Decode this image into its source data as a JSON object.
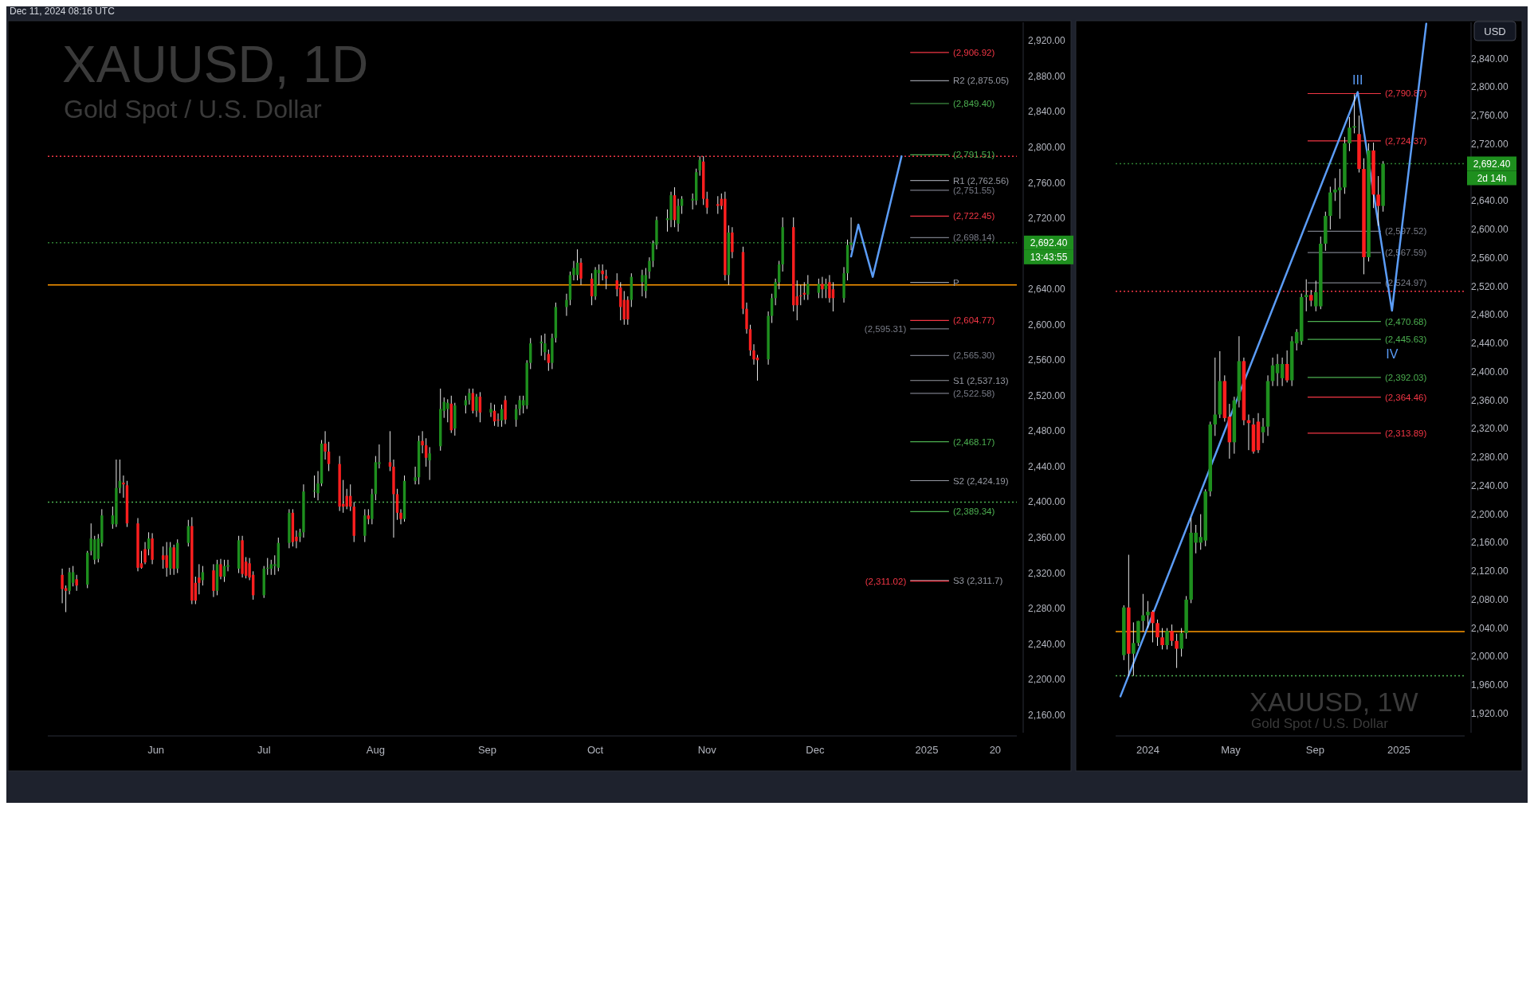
{
  "chart_data": [
    {
      "type": "candlestick",
      "title": "XAUUSD, 1D",
      "subtitle": "Gold Spot / U.S. Dollar",
      "grid": false,
      "x": [
        "2024-05-06",
        "2024-05-07",
        "2024-05-08",
        "2024-05-09",
        "2024-05-10",
        "2024-05-13",
        "2024-05-14",
        "2024-05-15",
        "2024-05-16",
        "2024-05-17",
        "2024-05-20",
        "2024-05-21",
        "2024-05-22",
        "2024-05-23",
        "2024-05-24",
        "2024-05-27",
        "2024-05-28",
        "2024-05-29",
        "2024-05-30",
        "2024-05-31",
        "2024-06-03",
        "2024-06-04",
        "2024-06-05",
        "2024-06-06",
        "2024-06-07",
        "2024-06-10",
        "2024-06-11",
        "2024-06-12",
        "2024-06-13",
        "2024-06-14",
        "2024-06-17",
        "2024-06-18",
        "2024-06-19",
        "2024-06-20",
        "2024-06-21",
        "2024-06-24",
        "2024-06-25",
        "2024-06-26",
        "2024-06-27",
        "2024-06-28",
        "2024-07-01",
        "2024-07-02",
        "2024-07-03",
        "2024-07-04",
        "2024-07-05",
        "2024-07-08",
        "2024-07-09",
        "2024-07-10",
        "2024-07-11",
        "2024-07-12",
        "2024-07-15",
        "2024-07-16",
        "2024-07-17",
        "2024-07-18",
        "2024-07-19",
        "2024-07-22",
        "2024-07-23",
        "2024-07-24",
        "2024-07-25",
        "2024-07-26",
        "2024-07-29",
        "2024-07-30",
        "2024-07-31",
        "2024-08-01",
        "2024-08-02",
        "2024-08-05",
        "2024-08-06",
        "2024-08-07",
        "2024-08-08",
        "2024-08-09",
        "2024-08-12",
        "2024-08-13",
        "2024-08-14",
        "2024-08-15",
        "2024-08-16",
        "2024-08-19",
        "2024-08-20",
        "2024-08-21",
        "2024-08-22",
        "2024-08-23",
        "2024-08-26",
        "2024-08-27",
        "2024-08-28",
        "2024-08-29",
        "2024-08-30",
        "2024-09-02",
        "2024-09-03",
        "2024-09-04",
        "2024-09-05",
        "2024-09-06",
        "2024-09-09",
        "2024-09-10",
        "2024-09-11",
        "2024-09-12",
        "2024-09-13",
        "2024-09-16",
        "2024-09-17",
        "2024-09-18",
        "2024-09-19",
        "2024-09-20",
        "2024-09-23",
        "2024-09-24",
        "2024-09-25",
        "2024-09-26",
        "2024-09-27",
        "2024-09-30",
        "2024-10-01",
        "2024-10-02",
        "2024-10-03",
        "2024-10-04",
        "2024-10-07",
        "2024-10-08",
        "2024-10-09",
        "2024-10-10",
        "2024-10-11",
        "2024-10-14",
        "2024-10-15",
        "2024-10-16",
        "2024-10-17",
        "2024-10-18",
        "2024-10-21",
        "2024-10-22",
        "2024-10-23",
        "2024-10-24",
        "2024-10-25",
        "2024-10-28",
        "2024-10-29",
        "2024-10-30",
        "2024-10-31",
        "2024-11-01",
        "2024-11-04",
        "2024-11-05",
        "2024-11-06",
        "2024-11-07",
        "2024-11-08",
        "2024-11-11",
        "2024-11-12",
        "2024-11-13",
        "2024-11-14",
        "2024-11-15",
        "2024-11-18",
        "2024-11-19",
        "2024-11-20",
        "2024-11-21",
        "2024-11-22",
        "2024-11-25",
        "2024-11-26",
        "2024-11-27",
        "2024-11-28",
        "2024-11-29",
        "2024-12-02",
        "2024-12-03",
        "2024-12-04",
        "2024-12-05",
        "2024-12-06",
        "2024-12-09",
        "2024-12-10",
        "2024-12-11"
      ],
      "ohlc": [
        [
          2318,
          2325,
          2286,
          2302
        ],
        [
          2303,
          2306,
          2276,
          2300
        ],
        [
          2300,
          2326,
          2296,
          2321
        ],
        [
          2309,
          2328,
          2305,
          2321
        ],
        [
          2313,
          2318,
          2300,
          2306
        ],
        [
          2307,
          2345,
          2303,
          2343
        ],
        [
          2345,
          2376,
          2340,
          2359
        ],
        [
          2335,
          2362,
          2330,
          2358
        ],
        [
          2336,
          2364,
          2332,
          2359
        ],
        [
          2354,
          2392,
          2350,
          2385
        ],
        [
          2375,
          2395,
          2370,
          2385
        ],
        [
          2375,
          2448,
          2372,
          2416
        ],
        [
          2416,
          2448,
          2410,
          2424
        ],
        [
          2422,
          2430,
          2405,
          2420
        ],
        [
          2419,
          2424,
          2372,
          2376
        ],
        [
          2376,
          2382,
          2322,
          2326
        ],
        [
          2331,
          2345,
          2325,
          2326
        ],
        [
          2347,
          2355,
          2330,
          2332
        ],
        [
          2347,
          2366,
          2340,
          2359
        ],
        [
          2359,
          2365,
          2330,
          2335
        ],
        [
          2340,
          2350,
          2325,
          2335
        ],
        [
          2340,
          2355,
          2316,
          2326
        ],
        [
          2325,
          2355,
          2318,
          2349
        ],
        [
          2349,
          2352,
          2318,
          2325
        ],
        [
          2325,
          2358,
          2320,
          2354
        ],
        [
          2354,
          2380,
          2350,
          2373
        ],
        [
          2373,
          2383,
          2285,
          2289
        ],
        [
          2309,
          2316,
          2285,
          2289
        ],
        [
          2315,
          2330,
          2296,
          2309
        ],
        [
          2312,
          2328,
          2306,
          2321
        ],
        [
          2323,
          2330,
          2293,
          2300
        ],
        [
          2300,
          2335,
          2295,
          2330
        ],
        [
          2330,
          2336,
          2313,
          2316
        ],
        [
          2316,
          2335,
          2310,
          2328
        ],
        [
          2327,
          2335,
          2322,
          2329
        ],
        [
          2325,
          2362,
          2320,
          2357
        ],
        [
          2357,
          2362,
          2315,
          2319
        ],
        [
          2333,
          2338,
          2314,
          2317
        ],
        [
          2331,
          2337,
          2312,
          2315
        ],
        [
          2318,
          2322,
          2290,
          2295
        ],
        [
          2295,
          2328,
          2292,
          2325
        ],
        [
          2325,
          2337,
          2318,
          2326
        ],
        [
          2325,
          2335,
          2318,
          2330
        ],
        [
          2328,
          2340,
          2318,
          2330
        ],
        [
          2326,
          2360,
          2322,
          2354
        ],
        [
          2354,
          2392,
          2348,
          2388
        ],
        [
          2388,
          2392,
          2350,
          2355
        ],
        [
          2361,
          2368,
          2348,
          2356
        ],
        [
          2361,
          2370,
          2355,
          2366
        ],
        [
          2366,
          2420,
          2360,
          2412
        ],
        [
          2412,
          2430,
          2405,
          2413
        ],
        [
          2410,
          2435,
          2402,
          2421
        ],
        [
          2421,
          2470,
          2418,
          2466
        ],
        [
          2466,
          2480,
          2448,
          2457
        ],
        [
          2457,
          2468,
          2435,
          2443
        ],
        [
          2443,
          2452,
          2390,
          2395
        ],
        [
          2398,
          2425,
          2388,
          2395
        ],
        [
          2407,
          2415,
          2392,
          2395
        ],
        [
          2407,
          2420,
          2390,
          2395
        ],
        [
          2395,
          2400,
          2355,
          2362
        ],
        [
          2362,
          2392,
          2355,
          2385
        ],
        [
          2385,
          2392,
          2375,
          2381
        ],
        [
          2381,
          2415,
          2375,
          2409
        ],
        [
          2409,
          2452,
          2402,
          2445
        ],
        [
          2443,
          2465,
          2438,
          2445
        ],
        [
          2445,
          2480,
          2435,
          2440
        ],
        [
          2440,
          2448,
          2360,
          2409
        ],
        [
          2409,
          2415,
          2380,
          2388
        ],
        [
          2388,
          2392,
          2375,
          2381
        ],
        [
          2381,
          2430,
          2378,
          2424
        ],
        [
          2424,
          2440,
          2420,
          2428
        ],
        [
          2428,
          2475,
          2420,
          2469
        ],
        [
          2469,
          2480,
          2455,
          2464
        ],
        [
          2464,
          2472,
          2440,
          2450
        ],
        [
          2447,
          2462,
          2425,
          2455
        ],
        [
          2463,
          2528,
          2458,
          2505
        ],
        [
          2503,
          2518,
          2495,
          2513
        ],
        [
          2505,
          2516,
          2490,
          2512
        ],
        [
          2511,
          2520,
          2478,
          2481
        ],
        [
          2483,
          2512,
          2475,
          2509
        ],
        [
          2509,
          2520,
          2500,
          2515
        ],
        [
          2515,
          2528,
          2510,
          2523
        ],
        [
          2523,
          2528,
          2500,
          2503
        ],
        [
          2503,
          2522,
          2496,
          2519
        ],
        [
          2519,
          2524,
          2490,
          2501
        ],
        [
          2501,
          2512,
          2496,
          2505
        ],
        [
          2503,
          2510,
          2486,
          2491
        ],
        [
          2493,
          2500,
          2485,
          2492
        ],
        [
          2492,
          2510,
          2485,
          2505
        ],
        [
          2515,
          2520,
          2488,
          2493
        ],
        [
          2493,
          2510,
          2485,
          2505
        ],
        [
          2505,
          2520,
          2498,
          2515
        ],
        [
          2509,
          2520,
          2500,
          2515
        ],
        [
          2509,
          2560,
          2505,
          2557
        ],
        [
          2557,
          2585,
          2550,
          2579
        ],
        [
          2579,
          2588,
          2565,
          2581
        ],
        [
          2569,
          2590,
          2560,
          2579
        ],
        [
          2567,
          2572,
          2548,
          2557
        ],
        [
          2557,
          2590,
          2550,
          2585
        ],
        [
          2585,
          2625,
          2580,
          2620
        ],
        [
          2620,
          2635,
          2610,
          2628
        ],
        [
          2628,
          2660,
          2622,
          2656
        ],
        [
          2656,
          2672,
          2650,
          2664
        ],
        [
          2656,
          2685,
          2650,
          2670
        ],
        [
          2670,
          2675,
          2645,
          2652
        ],
        [
          2652,
          2658,
          2622,
          2632
        ],
        [
          2632,
          2665,
          2628,
          2662
        ],
        [
          2658,
          2668,
          2645,
          2662
        ],
        [
          2661,
          2668,
          2650,
          2657
        ],
        [
          2655,
          2662,
          2640,
          2652
        ],
        [
          2650,
          2658,
          2632,
          2640
        ],
        [
          2642,
          2648,
          2605,
          2620
        ],
        [
          2628,
          2638,
          2600,
          2606
        ],
        [
          2628,
          2632,
          2600,
          2606
        ],
        [
          2628,
          2658,
          2620,
          2654
        ],
        [
          2648,
          2662,
          2632,
          2656
        ],
        [
          2638,
          2664,
          2630,
          2656
        ],
        [
          2660,
          2676,
          2652,
          2672
        ],
        [
          2672,
          2695,
          2665,
          2692
        ],
        [
          2690,
          2722,
          2685,
          2718
        ],
        [
          2718,
          2730,
          2705,
          2720
        ],
        [
          2718,
          2750,
          2710,
          2746
        ],
        [
          2746,
          2755,
          2710,
          2718
        ],
        [
          2714,
          2742,
          2705,
          2734
        ],
        [
          2734,
          2745,
          2725,
          2742
        ],
        [
          2740,
          2748,
          2730,
          2742
        ],
        [
          2740,
          2776,
          2735,
          2772
        ],
        [
          2774,
          2790,
          2768,
          2786
        ],
        [
          2784,
          2790,
          2735,
          2742
        ],
        [
          2742,
          2750,
          2725,
          2732
        ],
        [
          2736,
          2745,
          2725,
          2734
        ],
        [
          2742,
          2748,
          2730,
          2734
        ],
        [
          2742,
          2750,
          2650,
          2656
        ],
        [
          2656,
          2712,
          2645,
          2704
        ],
        [
          2704,
          2710,
          2675,
          2682
        ],
        [
          2682,
          2688,
          2612,
          2618
        ],
        [
          2618,
          2625,
          2590,
          2595
        ],
        [
          2595,
          2600,
          2565,
          2571
        ],
        [
          2571,
          2578,
          2555,
          2561
        ],
        [
          2563,
          2566,
          2537,
          2560
        ],
        [
          2561,
          2615,
          2555,
          2610
        ],
        [
          2610,
          2635,
          2602,
          2630
        ],
        [
          2630,
          2652,
          2622,
          2648
        ],
        [
          2648,
          2672,
          2640,
          2668
        ],
        [
          2668,
          2721,
          2660,
          2710
        ],
        [
          2710,
          2721,
          2615,
          2622
        ],
        [
          2632,
          2650,
          2605,
          2622
        ],
        [
          2633,
          2645,
          2622,
          2632
        ],
        [
          2636,
          2648,
          2628,
          2634
        ],
        [
          2634,
          2656,
          2628,
          2646
        ],
        [
          2636,
          2652,
          2630,
          2646
        ],
        [
          2646,
          2654,
          2630,
          2640
        ],
        [
          2640,
          2652,
          2630,
          2646
        ],
        [
          2648,
          2656,
          2625,
          2630
        ],
        [
          2640,
          2648,
          2615,
          2630
        ],
        [
          2630,
          2665,
          2625,
          2658
        ],
        [
          2658,
          2696,
          2650,
          2690
        ],
        [
          2690,
          2721,
          2684,
          2692.4
        ]
      ],
      "series": [
        {
          "type": "line",
          "color": "#5b9cf6",
          "x": [
            "2024-12-11",
            "2024-12-13",
            "2024-12-17",
            "2024-12-25"
          ],
          "values": [
            2677,
            2713,
            2654,
            2790
          ]
        }
      ],
      "xlim": [
        "2024-05-02",
        "2025-01-26"
      ],
      "xticks": [
        {
          "value": "2024-06-01",
          "label": "Jun"
        },
        {
          "value": "2024-07-01",
          "label": "Jul"
        },
        {
          "value": "2024-08-01",
          "label": "Aug"
        },
        {
          "value": "2024-09-01",
          "label": "Sep"
        },
        {
          "value": "2024-10-01",
          "label": "Oct"
        },
        {
          "value": "2024-11-01",
          "label": "Nov"
        },
        {
          "value": "2024-12-01",
          "label": "Dec"
        },
        {
          "value": "2025-01-01",
          "label": "2025"
        },
        {
          "value": "2025-01-20",
          "label": "20"
        }
      ],
      "ylim": [
        2140,
        2941
      ],
      "yticks": [
        {
          "value": 2160,
          "label": "2,160.00"
        },
        {
          "value": 2200,
          "label": "2,200.00"
        },
        {
          "value": 2240,
          "label": "2,240.00"
        },
        {
          "value": 2280,
          "label": "2,280.00"
        },
        {
          "value": 2320,
          "label": "2,320.00"
        },
        {
          "value": 2360,
          "label": "2,360.00"
        },
        {
          "value": 2400,
          "label": "2,400.00"
        },
        {
          "value": 2440,
          "label": "2,440.00"
        },
        {
          "value": 2480,
          "label": "2,480.00"
        },
        {
          "value": 2520,
          "label": "2,520.00"
        },
        {
          "value": 2560,
          "label": "2,560.00"
        },
        {
          "value": 2600,
          "label": "2,600.00"
        },
        {
          "value": 2640,
          "label": "2,640.00"
        },
        {
          "value": 2720,
          "label": "2,720.00"
        },
        {
          "value": 2760,
          "label": "2,760.00"
        },
        {
          "value": 2800,
          "label": "2,800.00"
        },
        {
          "value": 2840,
          "label": "2,840.00"
        },
        {
          "value": 2880,
          "label": "2,880.00"
        },
        {
          "value": 2920,
          "label": "2,920.00"
        }
      ],
      "ref_lines": [
        {
          "axis": "y",
          "value": 2790,
          "label": null,
          "color": "#f23645",
          "line_style": "dotted"
        },
        {
          "axis": "y",
          "value": 2645,
          "label": null,
          "color": "#ff9800",
          "line_style": "solid"
        },
        {
          "axis": "y",
          "value": 2400,
          "label": null,
          "color": "#4caf50",
          "line_style": "dotted"
        },
        {
          "axis": "y",
          "value": 2692.4,
          "label": null,
          "color": "#2e7d32",
          "line_style": "dotted"
        },
        {
          "axis": "y",
          "value": 2906.92,
          "label": "(2,906.92)",
          "color": "#f23645"
        },
        {
          "axis": "y",
          "value": 2875.05,
          "label": "R2 (2,875.05)",
          "color": "#9598a1"
        },
        {
          "axis": "y",
          "value": 2849.4,
          "label": "(2,849.40)",
          "color": "#4caf50"
        },
        {
          "axis": "y",
          "value": 2791.51,
          "label": "(2,791.51)",
          "color": "#4caf50"
        },
        {
          "axis": "y",
          "value": 2762.56,
          "label": "R1 (2,762.56)",
          "color": "#9598a1"
        },
        {
          "axis": "y",
          "value": 2751.55,
          "label": "(2,751.55)",
          "color": "#787b86"
        },
        {
          "axis": "y",
          "value": 2722.45,
          "label": "(2,722.45)",
          "color": "#f23645"
        },
        {
          "axis": "y",
          "value": 2698.14,
          "label": "(2,698.14)",
          "color": "#787b86"
        },
        {
          "axis": "y",
          "value": 2647.7,
          "label": "P",
          "color": "#9598a1"
        },
        {
          "axis": "y",
          "value": 2604.77,
          "label": "(2,604.77)",
          "color": "#f23645"
        },
        {
          "axis": "y",
          "value": 2595.31,
          "label": "(2,595.31)",
          "color": "#787b86"
        },
        {
          "axis": "y",
          "value": 2565.3,
          "label": "(2,565.30)",
          "color": "#787b86"
        },
        {
          "axis": "y",
          "value": 2537.13,
          "label": "S1 (2,537.13)",
          "color": "#9598a1"
        },
        {
          "axis": "y",
          "value": 2522.58,
          "label": "(2,522.58)",
          "color": "#787b86"
        },
        {
          "axis": "y",
          "value": 2468.17,
          "label": "(2,468.17)",
          "color": "#4caf50"
        },
        {
          "axis": "y",
          "value": 2424.19,
          "label": "S2 (2,424.19)",
          "color": "#9598a1"
        },
        {
          "axis": "y",
          "value": 2389.34,
          "label": "(2,389.34)",
          "color": "#4caf50"
        },
        {
          "axis": "y",
          "value": 2311.7,
          "label": "S3 (2,311.7)",
          "color": "#9598a1"
        },
        {
          "axis": "y",
          "value": 2311.02,
          "label": "(2,311.02)",
          "color": "#f23645"
        }
      ],
      "annotations": [
        "Dec 11, 2024 08:16 UTC",
        "2,692.40",
        "13:43:55"
      ]
    },
    {
      "type": "candlestick",
      "title": "XAUUSD, 1W",
      "subtitle": "Gold Spot / U.S. Dollar",
      "grid": false,
      "x": [
        "2023-11-27",
        "2023-12-04",
        "2023-12-11",
        "2023-12-18",
        "2023-12-25",
        "2024-01-01",
        "2024-01-08",
        "2024-01-15",
        "2024-01-22",
        "2024-01-29",
        "2024-02-05",
        "2024-02-12",
        "2024-02-19",
        "2024-02-26",
        "2024-03-04",
        "2024-03-11",
        "2024-03-18",
        "2024-03-25",
        "2024-04-01",
        "2024-04-08",
        "2024-04-15",
        "2024-04-22",
        "2024-04-29",
        "2024-05-06",
        "2024-05-13",
        "2024-05-20",
        "2024-05-27",
        "2024-06-03",
        "2024-06-10",
        "2024-06-17",
        "2024-06-24",
        "2024-07-01",
        "2024-07-08",
        "2024-07-15",
        "2024-07-22",
        "2024-07-29",
        "2024-08-05",
        "2024-08-12",
        "2024-08-19",
        "2024-08-26",
        "2024-09-02",
        "2024-09-09",
        "2024-09-16",
        "2024-09-23",
        "2024-09-30",
        "2024-10-07",
        "2024-10-14",
        "2024-10-21",
        "2024-10-28",
        "2024-11-04",
        "2024-11-11",
        "2024-11-18",
        "2024-11-25",
        "2024-12-02",
        "2024-12-09"
      ],
      "ohlc": [
        [
          2002,
          2072,
          1995,
          2069
        ],
        [
          2069,
          2143,
          1972,
          2004
        ],
        [
          2004,
          2048,
          1973,
          2019
        ],
        [
          2019,
          2050,
          2015,
          2050
        ],
        [
          2050,
          2088,
          2035,
          2058
        ],
        [
          2058,
          2078,
          2040,
          2063
        ],
        [
          2063,
          2065,
          2020,
          2047
        ],
        [
          2047,
          2052,
          2015,
          2027
        ],
        [
          2027,
          2040,
          2010,
          2016
        ],
        [
          2016,
          2040,
          2010,
          2036
        ],
        [
          2036,
          2045,
          2015,
          2022
        ],
        [
          2022,
          2032,
          1984,
          2011
        ],
        [
          2011,
          2040,
          2000,
          2033
        ],
        [
          2033,
          2085,
          2025,
          2080
        ],
        [
          2080,
          2195,
          2075,
          2174
        ],
        [
          2160,
          2185,
          2145,
          2174
        ],
        [
          2160,
          2200,
          2150,
          2168
        ],
        [
          2163,
          2235,
          2155,
          2232
        ],
        [
          2232,
          2330,
          2225,
          2326
        ],
        [
          2326,
          2420,
          2310,
          2340
        ],
        [
          2340,
          2429,
          2335,
          2387
        ],
        [
          2387,
          2395,
          2330,
          2335
        ],
        [
          2337,
          2355,
          2278,
          2301
        ],
        [
          2301,
          2365,
          2285,
          2360
        ],
        [
          2360,
          2450,
          2350,
          2415
        ],
        [
          2415,
          2420,
          2325,
          2332
        ],
        [
          2332,
          2340,
          2290,
          2328
        ],
        [
          2326,
          2335,
          2285,
          2288
        ],
        [
          2330,
          2342,
          2286,
          2290
        ],
        [
          2315,
          2335,
          2300,
          2323
        ],
        [
          2323,
          2395,
          2310,
          2387
        ],
        [
          2387,
          2420,
          2380,
          2409
        ],
        [
          2398,
          2425,
          2380,
          2411
        ],
        [
          2391,
          2420,
          2380,
          2411
        ],
        [
          2411,
          2430,
          2385,
          2388
        ],
        [
          2388,
          2450,
          2380,
          2443
        ],
        [
          2440,
          2460,
          2430,
          2456
        ],
        [
          2443,
          2510,
          2438,
          2505
        ],
        [
          2505,
          2530,
          2485,
          2508
        ],
        [
          2508,
          2515,
          2492,
          2500
        ],
        [
          2492,
          2528,
          2485,
          2512
        ],
        [
          2492,
          2590,
          2488,
          2580
        ],
        [
          2580,
          2625,
          2570,
          2619
        ],
        [
          2619,
          2660,
          2600,
          2652
        ],
        [
          2652,
          2672,
          2640,
          2656
        ],
        [
          2655,
          2685,
          2615,
          2659
        ],
        [
          2659,
          2730,
          2650,
          2721
        ],
        [
          2721,
          2758,
          2710,
          2743
        ],
        [
          2743,
          2790,
          2735,
          2745
        ],
        [
          2734,
          2760,
          2680,
          2685
        ],
        [
          2685,
          2700,
          2537,
          2561
        ],
        [
          2561,
          2721,
          2555,
          2711
        ],
        [
          2711,
          2722,
          2630,
          2649
        ],
        [
          2649,
          2675,
          2605,
          2633
        ],
        [
          2633,
          2696,
          2625,
          2692.4
        ]
      ],
      "series": [
        {
          "type": "line",
          "color": "#5b9cf6",
          "x": [
            "2023-11-22",
            "2024-11-02",
            "2024-12-22",
            "2025-02-10"
          ],
          "values": [
            1944,
            2793,
            2486,
            2889
          ]
        }
      ],
      "xlim": [
        "2023-11-15",
        "2025-04-07"
      ],
      "xticks": [
        {
          "value": "2024-01-01",
          "label": "2024"
        },
        {
          "value": "2024-05-01",
          "label": "May"
        },
        {
          "value": "2024-09-01",
          "label": "Sep"
        },
        {
          "value": "2025-01-01",
          "label": "2025"
        }
      ],
      "ylim": [
        1893,
        2891
      ],
      "yticks": [
        {
          "value": 1920,
          "label": "1,920.00"
        },
        {
          "value": 1960,
          "label": "1,960.00"
        },
        {
          "value": 2000,
          "label": "2,000.00"
        },
        {
          "value": 2040,
          "label": "2,040.00"
        },
        {
          "value": 2080,
          "label": "2,080.00"
        },
        {
          "value": 2120,
          "label": "2,120.00"
        },
        {
          "value": 2160,
          "label": "2,160.00"
        },
        {
          "value": 2200,
          "label": "2,200.00"
        },
        {
          "value": 2240,
          "label": "2,240.00"
        },
        {
          "value": 2280,
          "label": "2,280.00"
        },
        {
          "value": 2320,
          "label": "2,320.00"
        },
        {
          "value": 2360,
          "label": "2,360.00"
        },
        {
          "value": 2400,
          "label": "2,400.00"
        },
        {
          "value": 2440,
          "label": "2,440.00"
        },
        {
          "value": 2480,
          "label": "2,480.00"
        },
        {
          "value": 2520,
          "label": "2,520.00"
        },
        {
          "value": 2560,
          "label": "2,560.00"
        },
        {
          "value": 2600,
          "label": "2,600.00"
        },
        {
          "value": 2640,
          "label": "2,640.00"
        },
        {
          "value": 2720,
          "label": "2,720.00"
        },
        {
          "value": 2760,
          "label": "2,760.00"
        },
        {
          "value": 2800,
          "label": "2,800.00"
        },
        {
          "value": 2840,
          "label": "2,840.00"
        }
      ],
      "ref_lines": [
        {
          "axis": "y",
          "value": 2035,
          "label": null,
          "color": "#ff9800",
          "line_style": "solid"
        },
        {
          "axis": "y",
          "value": 2513,
          "label": null,
          "color": "#f23645",
          "line_style": "dotted"
        },
        {
          "axis": "y",
          "value": 1973,
          "label": null,
          "color": "#4caf50",
          "line_style": "dotted"
        },
        {
          "axis": "y",
          "value": 2692.4,
          "label": null,
          "color": "#2e7d32",
          "line_style": "dotted"
        },
        {
          "axis": "y",
          "value": 2790.87,
          "label": "(2,790.87)",
          "color": "#f23645"
        },
        {
          "axis": "y",
          "value": 2724.37,
          "label": "(2,724.37)",
          "color": "#f23645"
        },
        {
          "axis": "y",
          "value": 2597.52,
          "label": "(2,597.52)",
          "color": "#787b86"
        },
        {
          "axis": "y",
          "value": 2567.59,
          "label": "(2,567.59)",
          "color": "#787b86"
        },
        {
          "axis": "y",
          "value": 2524.97,
          "label": "(2,524.97)",
          "color": "#787b86"
        },
        {
          "axis": "y",
          "value": 2470.68,
          "label": "(2,470.68)",
          "color": "#4caf50"
        },
        {
          "axis": "y",
          "value": 2445.63,
          "label": "(2,445.63)",
          "color": "#4caf50"
        },
        {
          "axis": "y",
          "value": 2392.03,
          "label": "(2,392.03)",
          "color": "#4caf50"
        },
        {
          "axis": "y",
          "value": 2364.46,
          "label": "(2,364.46)",
          "color": "#f23645"
        },
        {
          "axis": "y",
          "value": 2313.89,
          "label": "(2,313.89)",
          "color": "#f23645"
        }
      ],
      "annotations": [
        "USD",
        "2,692.40",
        "2d 14h",
        "III",
        "IV"
      ]
    }
  ]
}
